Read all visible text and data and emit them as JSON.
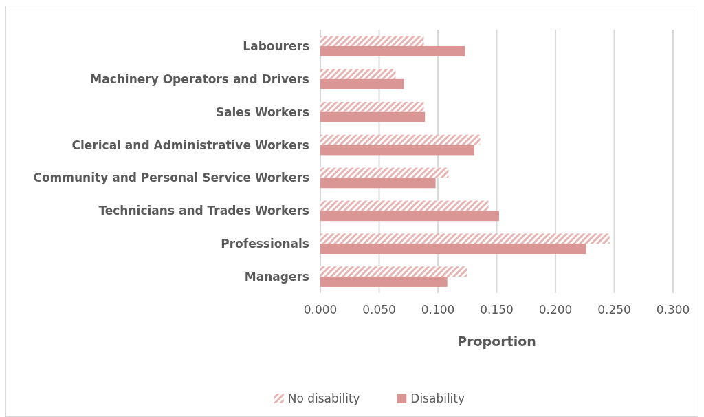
{
  "chart_data": {
    "type": "bar",
    "orientation": "horizontal",
    "xlabel": "Proportion",
    "categories": [
      "Labourers",
      "Machinery Operators and Drivers",
      "Sales Workers",
      "Clerical and Administrative Workers",
      "Community and Personal Service Workers",
      "Technicians and Trades Workers",
      "Professionals",
      "Managers"
    ],
    "series": [
      {
        "name": "No disability",
        "color": "#e6b4b3",
        "values": [
          0.088,
          0.064,
          0.088,
          0.136,
          0.109,
          0.143,
          0.246,
          0.125
        ]
      },
      {
        "name": "Disability",
        "color": "#d99694",
        "values": [
          0.123,
          0.071,
          0.089,
          0.131,
          0.098,
          0.152,
          0.226,
          0.108
        ]
      }
    ],
    "xlim": [
      0,
      0.3
    ],
    "xticks": [
      {
        "value": 0,
        "label": "0.000"
      },
      {
        "value": 0.05,
        "label": "0.050"
      },
      {
        "value": 0.1,
        "label": "0.100"
      },
      {
        "value": 0.15,
        "label": "0.150"
      },
      {
        "value": 0.2,
        "label": "0.200"
      },
      {
        "value": 0.25,
        "label": "0.250"
      },
      {
        "value": 0.3,
        "label": "0.300"
      }
    ],
    "grid": "x",
    "legend": "bottom"
  }
}
